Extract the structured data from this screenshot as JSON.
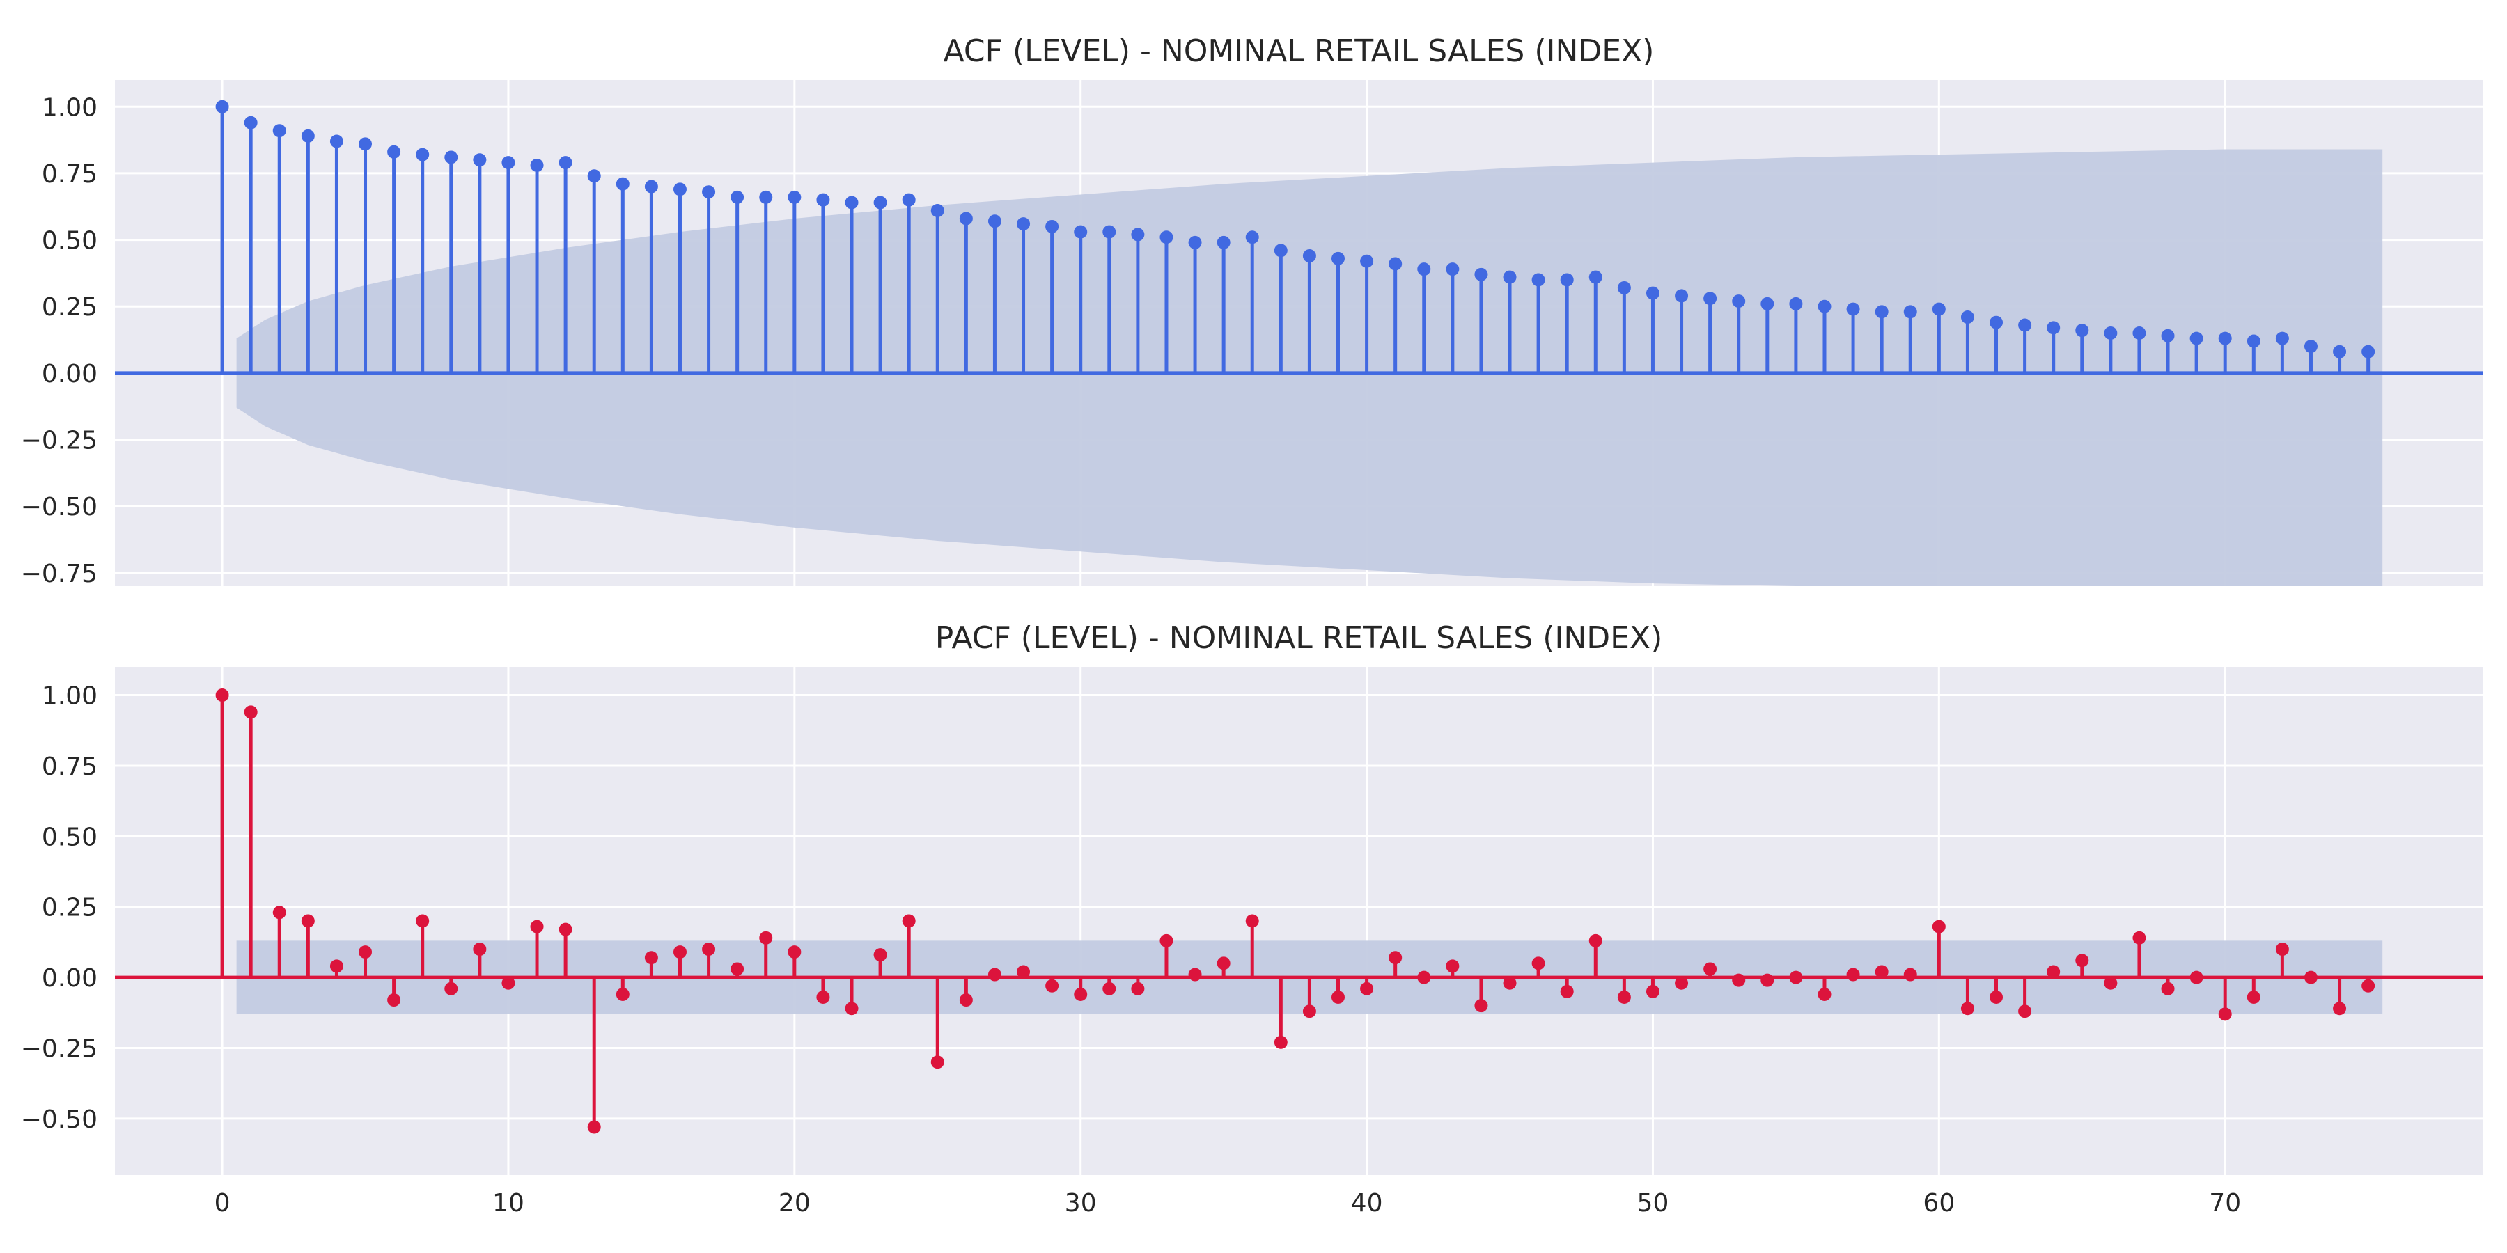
{
  "chart_data": [
    {
      "type": "stem",
      "title": "ACF (LEVEL) - NOMINAL RETAIL SALES (INDEX)",
      "xlabel": "",
      "ylabel": "",
      "xlim": [
        -3.75,
        79
      ],
      "ylim": [
        -0.8,
        1.1
      ],
      "yticks": [
        "1.00",
        "0.75",
        "0.50",
        "0.25",
        "0.00",
        "−0.25",
        "−0.50",
        "−0.75"
      ],
      "ytick_values": [
        1.0,
        0.75,
        0.5,
        0.25,
        0.0,
        -0.25,
        -0.5,
        -0.75
      ],
      "xticks": [
        0,
        10,
        20,
        30,
        40,
        50,
        60,
        70
      ],
      "grid": true,
      "stem_color": "#4169e1",
      "band_color": "#c3cbe2",
      "background": "#eaeaf2",
      "lags": [
        0,
        1,
        2,
        3,
        4,
        5,
        6,
        7,
        8,
        9,
        10,
        11,
        12,
        13,
        14,
        15,
        16,
        17,
        18,
        19,
        20,
        21,
        22,
        23,
        24,
        25,
        26,
        27,
        28,
        29,
        30,
        31,
        32,
        33,
        34,
        35,
        36,
        37,
        38,
        39,
        40,
        41,
        42,
        43,
        44,
        45,
        46,
        47,
        48,
        49,
        50,
        51,
        52,
        53,
        54,
        55,
        56,
        57,
        58,
        59,
        60,
        61,
        62,
        63,
        64,
        65,
        66,
        67,
        68,
        69,
        70,
        71,
        72,
        73,
        74,
        75
      ],
      "values": [
        1.0,
        0.94,
        0.91,
        0.89,
        0.87,
        0.86,
        0.83,
        0.82,
        0.81,
        0.8,
        0.79,
        0.78,
        0.79,
        0.74,
        0.71,
        0.7,
        0.69,
        0.68,
        0.66,
        0.66,
        0.66,
        0.65,
        0.64,
        0.64,
        0.65,
        0.61,
        0.58,
        0.57,
        0.56,
        0.55,
        0.53,
        0.53,
        0.52,
        0.51,
        0.49,
        0.49,
        0.51,
        0.46,
        0.44,
        0.43,
        0.42,
        0.41,
        0.39,
        0.39,
        0.37,
        0.36,
        0.35,
        0.35,
        0.36,
        0.32,
        0.3,
        0.29,
        0.28,
        0.27,
        0.26,
        0.26,
        0.25,
        0.24,
        0.23,
        0.23,
        0.24,
        0.21,
        0.19,
        0.18,
        0.17,
        0.16,
        0.15,
        0.15,
        0.14,
        0.13,
        0.13,
        0.12,
        0.13,
        0.1,
        0.08,
        0.08
      ],
      "confidence_band": {
        "lags": [
          0.5,
          1.5,
          3,
          5,
          8,
          12,
          16,
          20,
          25,
          30,
          35,
          40,
          45,
          50,
          55,
          60,
          65,
          70,
          75.5
        ],
        "upper": [
          0.13,
          0.2,
          0.27,
          0.33,
          0.4,
          0.47,
          0.53,
          0.58,
          0.63,
          0.67,
          0.71,
          0.74,
          0.77,
          0.79,
          0.81,
          0.82,
          0.83,
          0.84,
          0.84
        ]
      }
    },
    {
      "type": "stem",
      "title": "PACF (LEVEL) - NOMINAL RETAIL SALES (INDEX)",
      "xlabel": "",
      "ylabel": "",
      "xlim": [
        -3.75,
        79
      ],
      "ylim": [
        -0.7,
        1.1
      ],
      "yticks": [
        "1.00",
        "0.75",
        "0.50",
        "0.25",
        "0.00",
        "−0.25",
        "−0.50"
      ],
      "ytick_values": [
        1.0,
        0.75,
        0.5,
        0.25,
        0.0,
        -0.25,
        -0.5
      ],
      "xticks": [
        "0",
        "10",
        "20",
        "30",
        "40",
        "50",
        "60",
        "70"
      ],
      "xtick_values": [
        0,
        10,
        20,
        30,
        40,
        50,
        60,
        70
      ],
      "grid": true,
      "stem_color": "#dc143c",
      "band_color": "#c3cbe2",
      "background": "#eaeaf2",
      "lags": [
        0,
        1,
        2,
        3,
        4,
        5,
        6,
        7,
        8,
        9,
        10,
        11,
        12,
        13,
        14,
        15,
        16,
        17,
        18,
        19,
        20,
        21,
        22,
        23,
        24,
        25,
        26,
        27,
        28,
        29,
        30,
        31,
        32,
        33,
        34,
        35,
        36,
        37,
        38,
        39,
        40,
        41,
        42,
        43,
        44,
        45,
        46,
        47,
        48,
        49,
        50,
        51,
        52,
        53,
        54,
        55,
        56,
        57,
        58,
        59,
        60,
        61,
        62,
        63,
        64,
        65,
        66,
        67,
        68,
        69,
        70,
        71,
        72,
        73,
        74,
        75
      ],
      "values": [
        1.0,
        0.94,
        0.23,
        0.2,
        0.04,
        0.09,
        -0.08,
        0.2,
        -0.04,
        0.1,
        -0.02,
        0.18,
        0.17,
        -0.53,
        -0.06,
        0.07,
        0.09,
        0.1,
        0.03,
        0.14,
        0.09,
        -0.07,
        -0.11,
        0.08,
        0.2,
        -0.3,
        -0.08,
        0.01,
        0.02,
        -0.03,
        -0.06,
        -0.04,
        -0.04,
        0.13,
        0.01,
        0.05,
        0.2,
        -0.23,
        -0.12,
        -0.07,
        -0.04,
        0.07,
        0.0,
        0.04,
        -0.1,
        -0.02,
        0.05,
        -0.05,
        0.13,
        -0.07,
        -0.05,
        -0.02,
        0.03,
        -0.01,
        -0.01,
        0.0,
        -0.06,
        0.01,
        0.02,
        0.01,
        0.18,
        -0.11,
        -0.07,
        -0.12,
        0.02,
        0.06,
        -0.02,
        0.14,
        -0.04,
        0.0,
        -0.13,
        -0.07,
        0.1,
        0.0,
        -0.11,
        -0.03
      ],
      "confidence_band": {
        "lags": [
          0.5,
          75.5
        ],
        "upper": [
          0.13,
          0.13
        ]
      }
    }
  ]
}
